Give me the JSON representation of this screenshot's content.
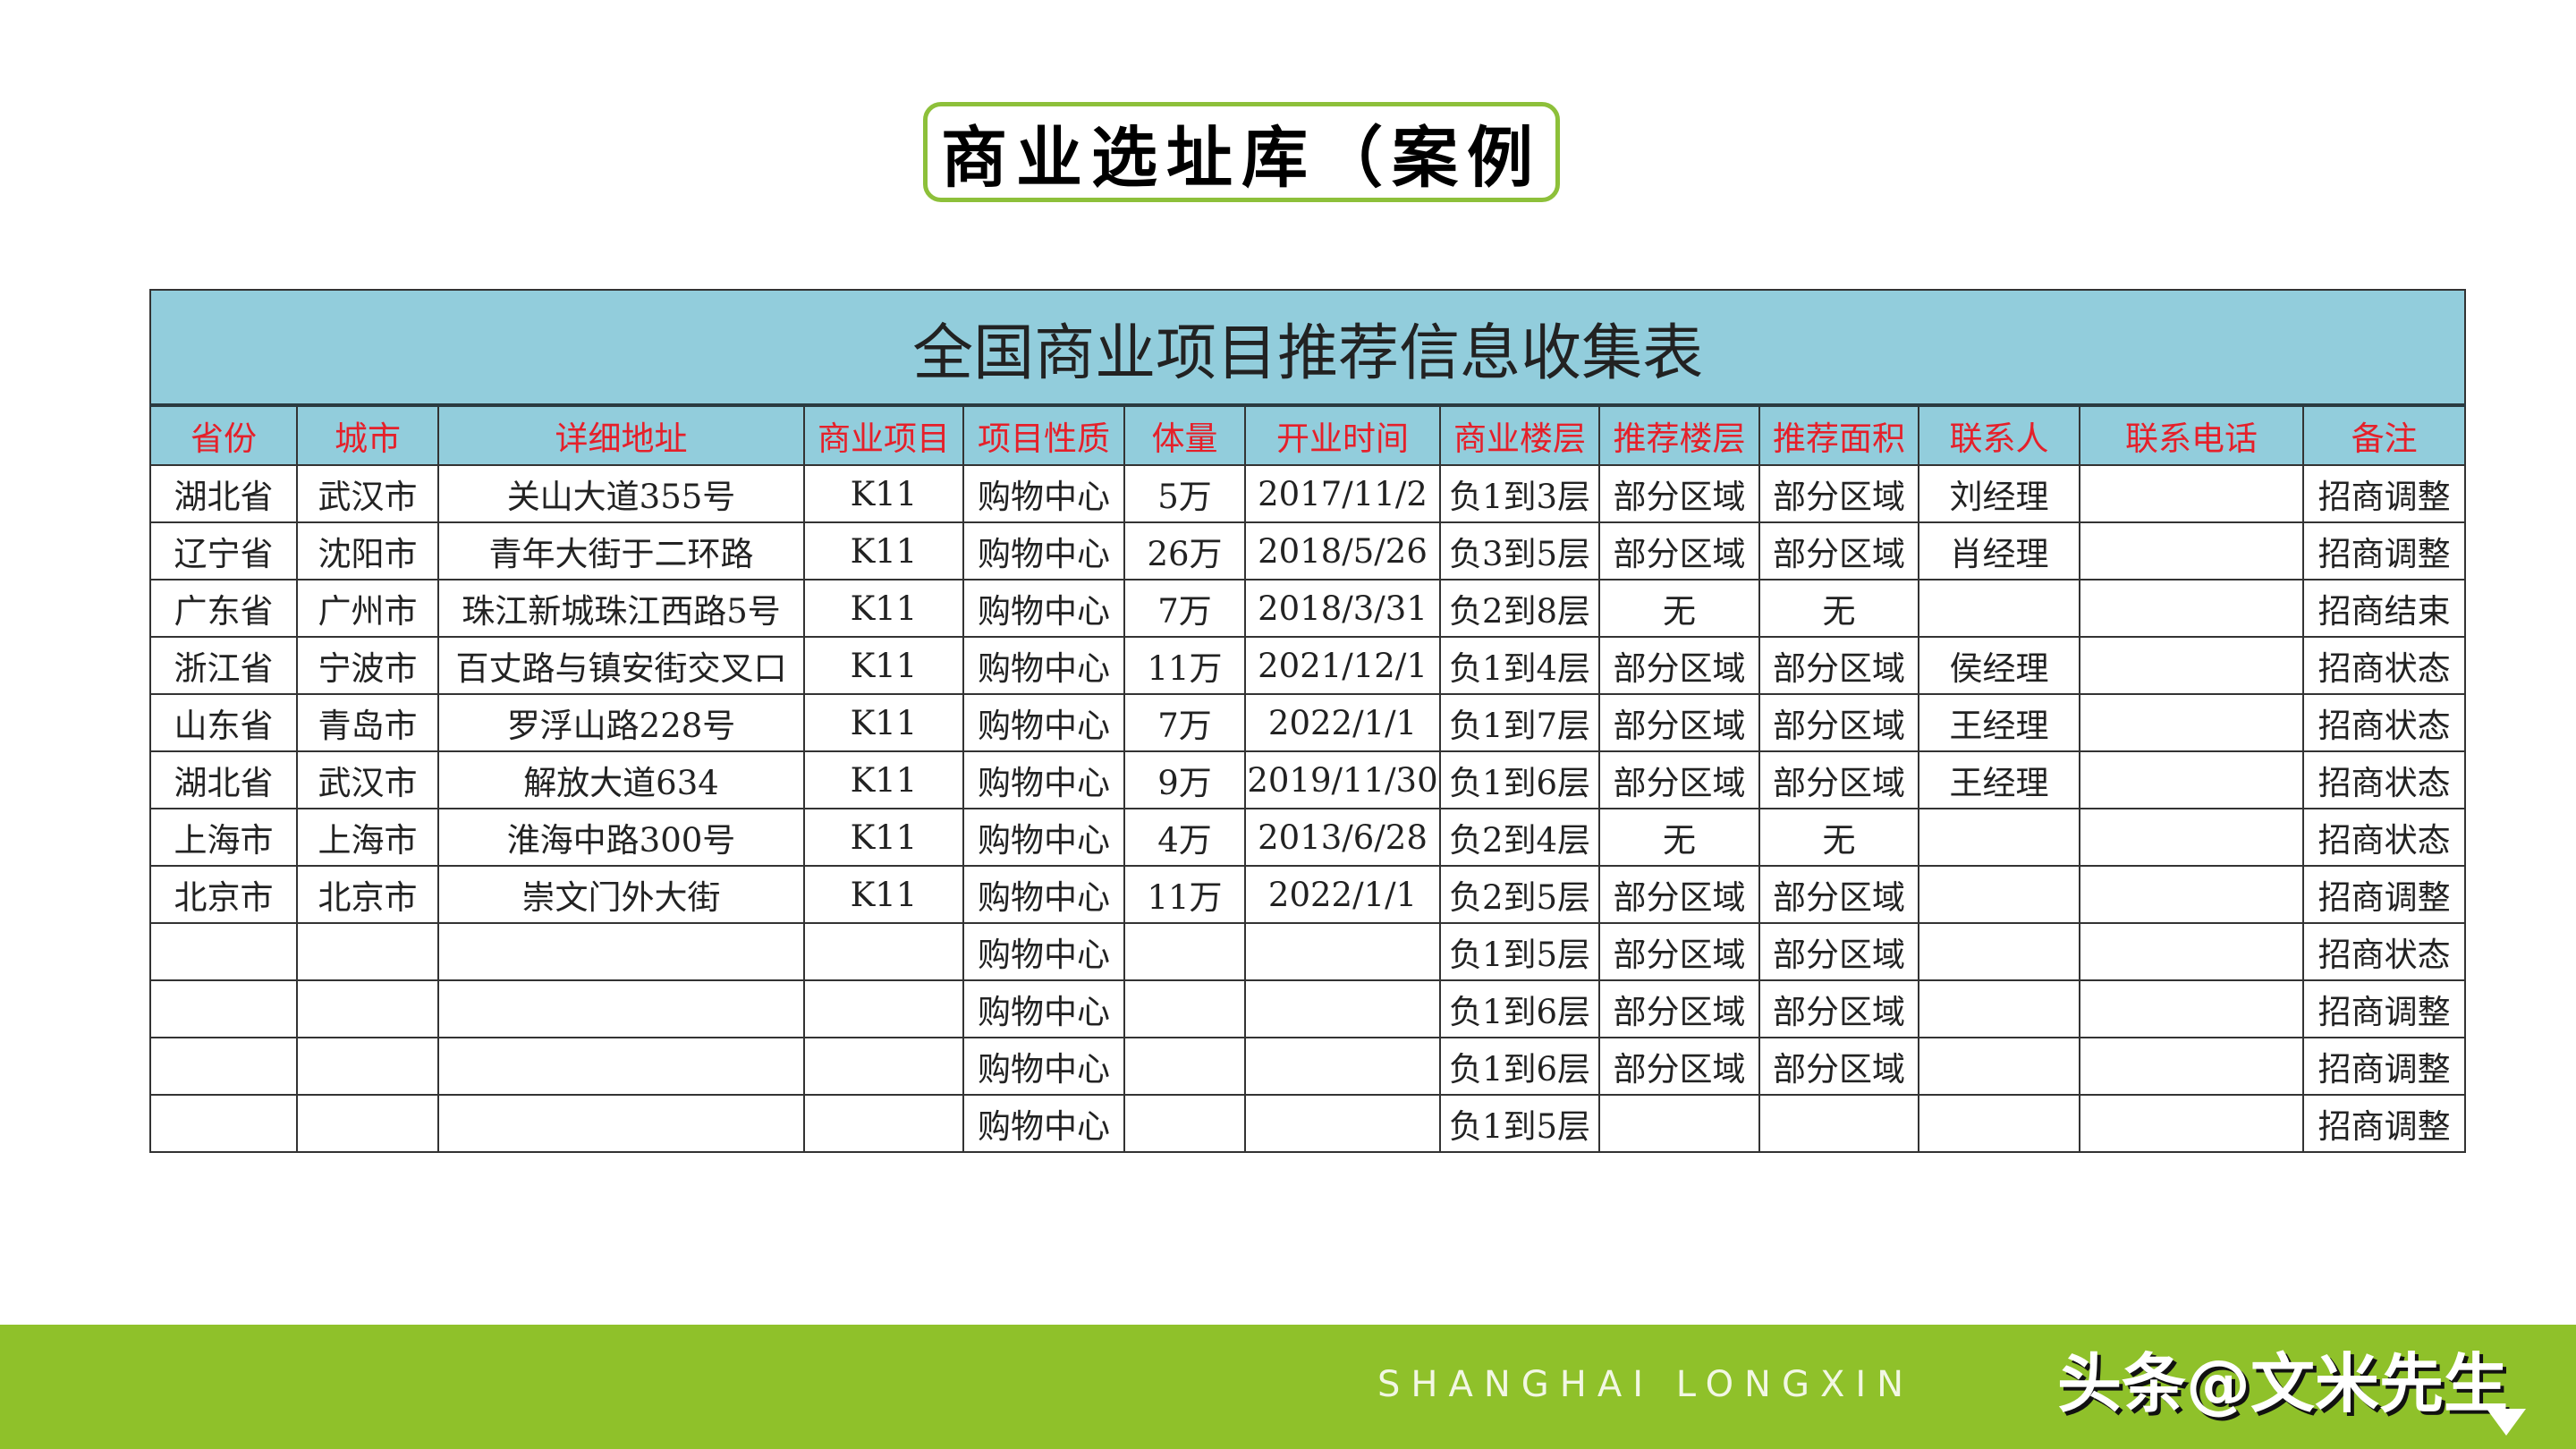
{
  "slide_title": "商业选址库（案例",
  "table": {
    "caption": "全国商业项目推荐信息收集表",
    "headers": [
      "省份",
      "城市",
      "详细地址",
      "商业项目",
      "项目性质",
      "体量",
      "开业时间",
      "商业楼层",
      "推荐楼层",
      "推荐面积",
      "联系人",
      "联系电话",
      "备注"
    ],
    "rows": [
      [
        "湖北省",
        "武汉市",
        "关山大道355号",
        "K11",
        "购物中心",
        "5万",
        "2017/11/2",
        "负1到3层",
        "部分区域",
        "部分区域",
        "刘经理",
        "",
        "招商调整"
      ],
      [
        "辽宁省",
        "沈阳市",
        "青年大街于二环路",
        "K11",
        "购物中心",
        "26万",
        "2018/5/26",
        "负3到5层",
        "部分区域",
        "部分区域",
        "肖经理",
        "",
        "招商调整"
      ],
      [
        "广东省",
        "广州市",
        "珠江新城珠江西路5号",
        "K11",
        "购物中心",
        "7万",
        "2018/3/31",
        "负2到8层",
        "无",
        "无",
        "",
        "",
        "招商结束"
      ],
      [
        "浙江省",
        "宁波市",
        "百丈路与镇安街交叉口",
        "K11",
        "购物中心",
        "11万",
        "2021/12/1",
        "负1到4层",
        "部分区域",
        "部分区域",
        "侯经理",
        "",
        "招商状态"
      ],
      [
        "山东省",
        "青岛市",
        "罗浮山路228号",
        "K11",
        "购物中心",
        "7万",
        "2022/1/1",
        "负1到7层",
        "部分区域",
        "部分区域",
        "王经理",
        "",
        "招商状态"
      ],
      [
        "湖北省",
        "武汉市",
        "解放大道634",
        "K11",
        "购物中心",
        "9万",
        "2019/11/30",
        "负1到6层",
        "部分区域",
        "部分区域",
        "王经理",
        "",
        "招商状态"
      ],
      [
        "上海市",
        "上海市",
        "淮海中路300号",
        "K11",
        "购物中心",
        "4万",
        "2013/6/28",
        "负2到4层",
        "无",
        "无",
        "",
        "",
        "招商状态"
      ],
      [
        "北京市",
        "北京市",
        "崇文门外大街",
        "K11",
        "购物中心",
        "11万",
        "2022/1/1",
        "负2到5层",
        "部分区域",
        "部分区域",
        "",
        "",
        "招商调整"
      ],
      [
        "",
        "",
        "",
        "",
        "购物中心",
        "",
        "",
        "负1到5层",
        "部分区域",
        "部分区域",
        "",
        "",
        "招商状态"
      ],
      [
        "",
        "",
        "",
        "",
        "购物中心",
        "",
        "",
        "负1到6层",
        "部分区域",
        "部分区域",
        "",
        "",
        "招商调整"
      ],
      [
        "",
        "",
        "",
        "",
        "购物中心",
        "",
        "",
        "负1到6层",
        "部分区域",
        "部分区域",
        "",
        "",
        "招商调整"
      ],
      [
        "",
        "",
        "",
        "",
        "购物中心",
        "",
        "",
        "负1到5层",
        "",
        "",
        "",
        "",
        "招商调整"
      ]
    ]
  },
  "footer": {
    "text": "SHANGHAI LONGXIN",
    "watermark": "头条@文米先生"
  },
  "colors": {
    "accent_green": "#8fc12a",
    "header_bg": "#92cddc",
    "header_text": "#e5202a"
  }
}
